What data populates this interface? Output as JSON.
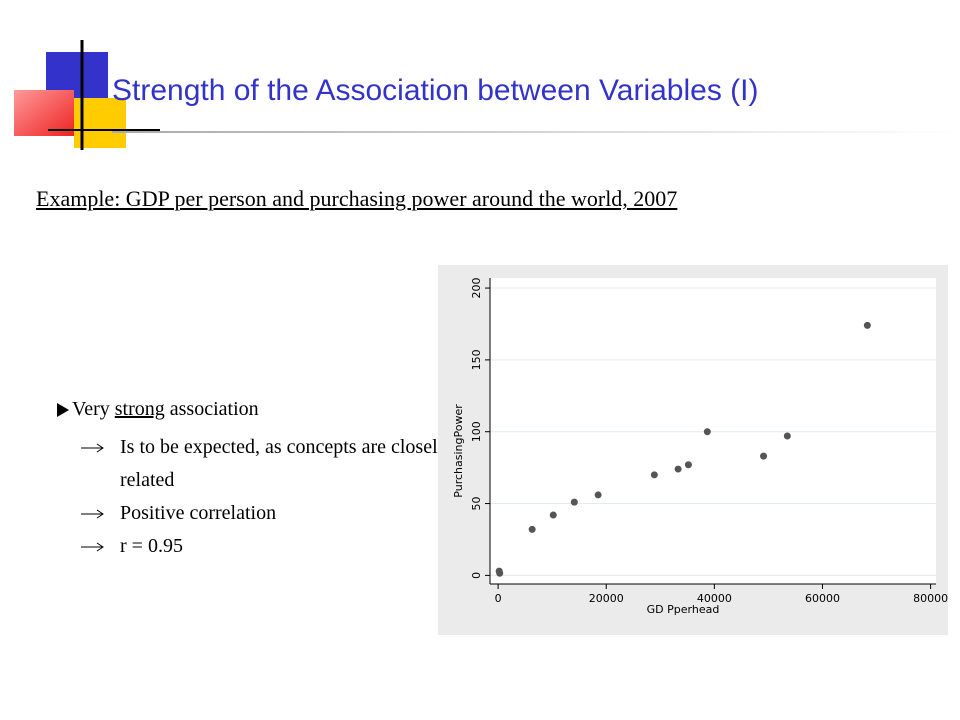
{
  "slide": {
    "title": "Strength of the Association between Variables (I)",
    "subtitle": "Example: GDP per person and purchasing power around the world, 2007",
    "bullet": {
      "parts": [
        "Very ",
        "strong",
        " association"
      ]
    },
    "sub_bullets": [
      "Is to be expected, as concepts are closely related",
      "Positive correlation",
      "r = 0.95"
    ]
  },
  "chart_data": {
    "type": "scatter",
    "x_label": "GD Pperhead",
    "y_label": "PurchasingPower",
    "x": [
      200,
      300,
      6300,
      10200,
      14100,
      18500,
      28900,
      33300,
      35200,
      38700,
      49100,
      53500,
      68300
    ],
    "series": [
      {
        "color": "#555555",
        "values": [
          3,
          1.5,
          32,
          42,
          51,
          56,
          70,
          74,
          77,
          100,
          83,
          97,
          174
        ]
      }
    ],
    "xlim": [
      -1500,
      81000
    ],
    "ylim": [
      -6,
      207
    ],
    "xticks": [
      0,
      20000,
      40000,
      60000,
      80000
    ],
    "yticks": [
      0,
      50,
      100,
      150,
      200
    ],
    "grid": true
  }
}
